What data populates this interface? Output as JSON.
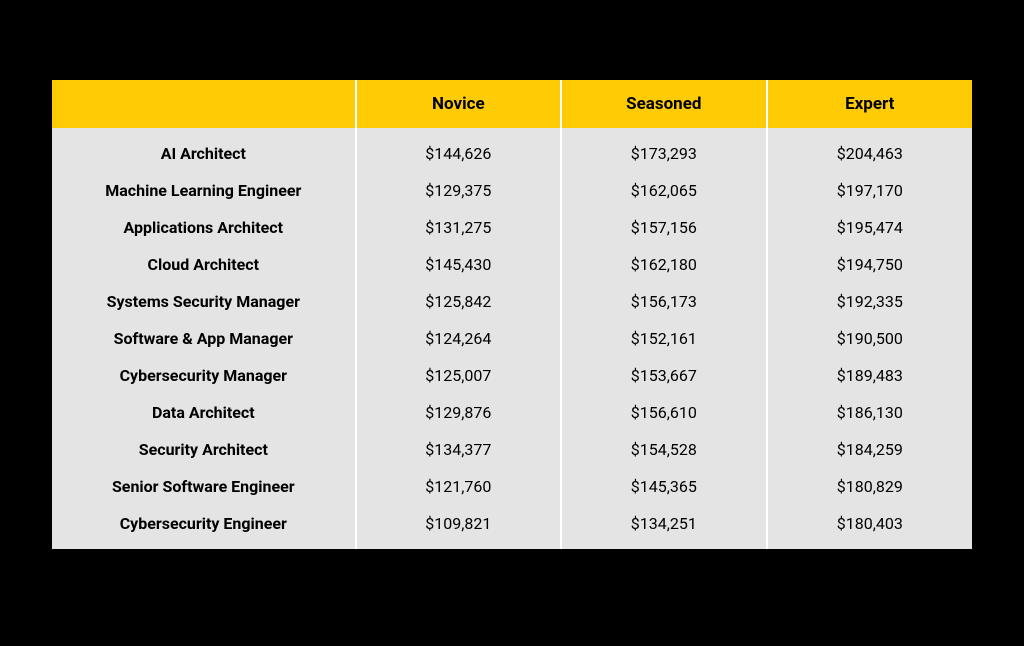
{
  "table": {
    "type": "table",
    "header_bg_color": "#ffcb05",
    "body_bg_color": "#e4e4e4",
    "separator_color": "#ffffff",
    "text_color": "#000000",
    "header_fontsize": 17,
    "body_fontsize": 16,
    "columns": [
      "",
      "Novice",
      "Seasoned",
      "Expert"
    ],
    "rows": [
      {
        "role": "AI Architect",
        "novice": "$144,626",
        "seasoned": "$173,293",
        "expert": "$204,463"
      },
      {
        "role": "Machine Learning Engineer",
        "novice": "$129,375",
        "seasoned": "$162,065",
        "expert": "$197,170"
      },
      {
        "role": "Applications Architect",
        "novice": "$131,275",
        "seasoned": "$157,156",
        "expert": "$195,474"
      },
      {
        "role": "Cloud Architect",
        "novice": "$145,430",
        "seasoned": "$162,180",
        "expert": "$194,750"
      },
      {
        "role": "Systems Security Manager",
        "novice": "$125,842",
        "seasoned": "$156,173",
        "expert": "$192,335"
      },
      {
        "role": "Software & App Manager",
        "novice": "$124,264",
        "seasoned": "$152,161",
        "expert": "$190,500"
      },
      {
        "role": "Cybersecurity Manager",
        "novice": "$125,007",
        "seasoned": "$153,667",
        "expert": "$189,483"
      },
      {
        "role": "Data Architect",
        "novice": "$129,876",
        "seasoned": "$156,610",
        "expert": "$186,130"
      },
      {
        "role": "Security Architect",
        "novice": "$134,377",
        "seasoned": "$154,528",
        "expert": "$184,259"
      },
      {
        "role": "Senior Software Engineer",
        "novice": "$121,760",
        "seasoned": "$145,365",
        "expert": "$180,829"
      },
      {
        "role": "Cybersecurity Engineer",
        "novice": "$109,821",
        "seasoned": "$134,251",
        "expert": "$180,403"
      }
    ]
  }
}
